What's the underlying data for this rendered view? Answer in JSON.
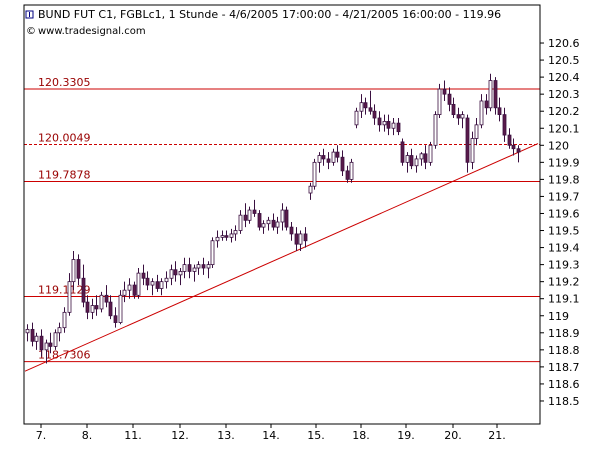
{
  "header": {
    "title": "BUND FUT C1, FGBLc1, 1 Stunde - 4/6/2005 17:00:00 - 4/21/2005 16:00:00 - 119.96",
    "source": "www.tradesignal.com"
  },
  "colors": {
    "up_candle": "#ffffff",
    "down_candle": "#5a1a4a",
    "candle_outline": "#3a1040",
    "level_line": "#cc0000",
    "level_label": "#990000",
    "grid": "#000000"
  },
  "chart_data": {
    "type": "candlestick",
    "title": "BUND FUT C1, FGBLc1, 1 Stunde - 4/6/2005 17:00:00 - 4/21/2005 16:00:00 - 119.96",
    "x_tick_labels": [
      "7.",
      "8.",
      "11.",
      "12.",
      "13.",
      "14.",
      "15.",
      "18.",
      "19.",
      "20.",
      "21."
    ],
    "y_ticks": [
      118.5,
      118.6,
      118.7,
      118.8,
      118.9,
      119,
      119.1,
      119.2,
      119.3,
      119.4,
      119.5,
      119.6,
      119.7,
      119.8,
      119.9,
      120,
      120.1,
      120.2,
      120.3,
      120.4,
      120.5,
      120.6
    ],
    "ylim": [
      118.45,
      120.65
    ],
    "levels": [
      {
        "value": 120.3305,
        "label": "120.3305",
        "style": "solid"
      },
      {
        "value": 120.0049,
        "label": "120.0049",
        "style": "dashed"
      },
      {
        "value": 119.7878,
        "label": "119.7878",
        "style": "solid"
      },
      {
        "value": 119.1129,
        "label": "119.1129",
        "style": "solid"
      },
      {
        "value": 118.7306,
        "label": "118.7306",
        "style": "solid"
      }
    ],
    "trendline": {
      "start": {
        "bar": 0,
        "value": 118.68
      },
      "end": {
        "bar": 107,
        "value": 119.97
      }
    },
    "last_price": 119.96,
    "candles": [
      {
        "o": 118.9,
        "h": 118.95,
        "l": 118.85,
        "c": 118.92
      },
      {
        "o": 118.92,
        "h": 118.96,
        "l": 118.82,
        "c": 118.85
      },
      {
        "o": 118.85,
        "h": 118.9,
        "l": 118.8,
        "c": 118.88
      },
      {
        "o": 118.88,
        "h": 118.92,
        "l": 118.76,
        "c": 118.8
      },
      {
        "o": 118.8,
        "h": 118.86,
        "l": 118.72,
        "c": 118.84
      },
      {
        "o": 118.84,
        "h": 118.9,
        "l": 118.78,
        "c": 118.82
      },
      {
        "o": 118.82,
        "h": 118.92,
        "l": 118.8,
        "c": 118.9
      },
      {
        "o": 118.9,
        "h": 118.96,
        "l": 118.85,
        "c": 118.93
      },
      {
        "o": 118.93,
        "h": 119.05,
        "l": 118.9,
        "c": 119.02
      },
      {
        "o": 119.02,
        "h": 119.25,
        "l": 119.0,
        "c": 119.2
      },
      {
        "o": 119.2,
        "h": 119.38,
        "l": 119.15,
        "c": 119.33
      },
      {
        "o": 119.33,
        "h": 119.36,
        "l": 119.18,
        "c": 119.22
      },
      {
        "o": 119.22,
        "h": 119.3,
        "l": 119.05,
        "c": 119.08
      },
      {
        "o": 119.08,
        "h": 119.12,
        "l": 118.98,
        "c": 119.02
      },
      {
        "o": 119.02,
        "h": 119.1,
        "l": 118.98,
        "c": 119.06
      },
      {
        "o": 119.06,
        "h": 119.12,
        "l": 119.0,
        "c": 119.04
      },
      {
        "o": 119.04,
        "h": 119.14,
        "l": 119.02,
        "c": 119.12
      },
      {
        "o": 119.12,
        "h": 119.18,
        "l": 119.05,
        "c": 119.08
      },
      {
        "o": 119.08,
        "h": 119.12,
        "l": 118.98,
        "c": 119.0
      },
      {
        "o": 119.0,
        "h": 119.05,
        "l": 118.93,
        "c": 118.96
      },
      {
        "o": 118.96,
        "h": 119.15,
        "l": 118.95,
        "c": 119.12
      },
      {
        "o": 119.12,
        "h": 119.2,
        "l": 119.08,
        "c": 119.15
      },
      {
        "o": 119.15,
        "h": 119.22,
        "l": 119.1,
        "c": 119.18
      },
      {
        "o": 119.18,
        "h": 119.2,
        "l": 119.1,
        "c": 119.12
      },
      {
        "o": 119.12,
        "h": 119.28,
        "l": 119.1,
        "c": 119.25
      },
      {
        "o": 119.25,
        "h": 119.3,
        "l": 119.18,
        "c": 119.22
      },
      {
        "o": 119.22,
        "h": 119.26,
        "l": 119.15,
        "c": 119.18
      },
      {
        "o": 119.18,
        "h": 119.22,
        "l": 119.12,
        "c": 119.2
      },
      {
        "o": 119.2,
        "h": 119.24,
        "l": 119.14,
        "c": 119.16
      },
      {
        "o": 119.16,
        "h": 119.22,
        "l": 119.12,
        "c": 119.2
      },
      {
        "o": 119.2,
        "h": 119.26,
        "l": 119.16,
        "c": 119.22
      },
      {
        "o": 119.22,
        "h": 119.3,
        "l": 119.18,
        "c": 119.27
      },
      {
        "o": 119.27,
        "h": 119.32,
        "l": 119.2,
        "c": 119.24
      },
      {
        "o": 119.24,
        "h": 119.28,
        "l": 119.18,
        "c": 119.26
      },
      {
        "o": 119.26,
        "h": 119.34,
        "l": 119.22,
        "c": 119.3
      },
      {
        "o": 119.3,
        "h": 119.34,
        "l": 119.22,
        "c": 119.26
      },
      {
        "o": 119.26,
        "h": 119.3,
        "l": 119.2,
        "c": 119.28
      },
      {
        "o": 119.28,
        "h": 119.32,
        "l": 119.24,
        "c": 119.3
      },
      {
        "o": 119.3,
        "h": 119.34,
        "l": 119.24,
        "c": 119.28
      },
      {
        "o": 119.28,
        "h": 119.32,
        "l": 119.22,
        "c": 119.3
      },
      {
        "o": 119.3,
        "h": 119.46,
        "l": 119.28,
        "c": 119.44
      },
      {
        "o": 119.44,
        "h": 119.5,
        "l": 119.4,
        "c": 119.46
      },
      {
        "o": 119.46,
        "h": 119.5,
        "l": 119.44,
        "c": 119.47
      },
      {
        "o": 119.47,
        "h": 119.5,
        "l": 119.44,
        "c": 119.46
      },
      {
        "o": 119.46,
        "h": 119.51,
        "l": 119.43,
        "c": 119.48
      },
      {
        "o": 119.48,
        "h": 119.53,
        "l": 119.44,
        "c": 119.5
      },
      {
        "o": 119.5,
        "h": 119.62,
        "l": 119.48,
        "c": 119.59
      },
      {
        "o": 119.59,
        "h": 119.66,
        "l": 119.52,
        "c": 119.56
      },
      {
        "o": 119.56,
        "h": 119.64,
        "l": 119.54,
        "c": 119.62
      },
      {
        "o": 119.62,
        "h": 119.68,
        "l": 119.58,
        "c": 119.6
      },
      {
        "o": 119.6,
        "h": 119.62,
        "l": 119.5,
        "c": 119.52
      },
      {
        "o": 119.52,
        "h": 119.56,
        "l": 119.48,
        "c": 119.54
      },
      {
        "o": 119.54,
        "h": 119.58,
        "l": 119.5,
        "c": 119.56
      },
      {
        "o": 119.56,
        "h": 119.6,
        "l": 119.5,
        "c": 119.52
      },
      {
        "o": 119.52,
        "h": 119.58,
        "l": 119.48,
        "c": 119.55
      },
      {
        "o": 119.55,
        "h": 119.66,
        "l": 119.5,
        "c": 119.62
      },
      {
        "o": 119.62,
        "h": 119.64,
        "l": 119.5,
        "c": 119.52
      },
      {
        "o": 119.52,
        "h": 119.55,
        "l": 119.44,
        "c": 119.48
      },
      {
        "o": 119.48,
        "h": 119.52,
        "l": 119.38,
        "c": 119.42
      },
      {
        "o": 119.42,
        "h": 119.5,
        "l": 119.38,
        "c": 119.48
      },
      {
        "o": 119.48,
        "h": 119.52,
        "l": 119.4,
        "c": 119.44
      },
      {
        "o": 119.72,
        "h": 119.78,
        "l": 119.68,
        "c": 119.76
      },
      {
        "o": 119.76,
        "h": 119.92,
        "l": 119.74,
        "c": 119.9
      },
      {
        "o": 119.9,
        "h": 119.96,
        "l": 119.84,
        "c": 119.94
      },
      {
        "o": 119.94,
        "h": 119.98,
        "l": 119.88,
        "c": 119.92
      },
      {
        "o": 119.92,
        "h": 119.96,
        "l": 119.86,
        "c": 119.9
      },
      {
        "o": 119.9,
        "h": 119.98,
        "l": 119.88,
        "c": 119.96
      },
      {
        "o": 119.96,
        "h": 120.0,
        "l": 119.9,
        "c": 119.93
      },
      {
        "o": 119.93,
        "h": 119.97,
        "l": 119.82,
        "c": 119.85
      },
      {
        "o": 119.85,
        "h": 119.88,
        "l": 119.78,
        "c": 119.8
      },
      {
        "o": 119.8,
        "h": 119.92,
        "l": 119.78,
        "c": 119.9
      },
      {
        "o": 120.12,
        "h": 120.22,
        "l": 120.1,
        "c": 120.2
      },
      {
        "o": 120.2,
        "h": 120.3,
        "l": 120.16,
        "c": 120.25
      },
      {
        "o": 120.25,
        "h": 120.28,
        "l": 120.18,
        "c": 120.22
      },
      {
        "o": 120.22,
        "h": 120.32,
        "l": 120.18,
        "c": 120.2
      },
      {
        "o": 120.2,
        "h": 120.24,
        "l": 120.12,
        "c": 120.16
      },
      {
        "o": 120.16,
        "h": 120.2,
        "l": 120.08,
        "c": 120.12
      },
      {
        "o": 120.12,
        "h": 120.18,
        "l": 120.08,
        "c": 120.14
      },
      {
        "o": 120.14,
        "h": 120.18,
        "l": 120.06,
        "c": 120.1
      },
      {
        "o": 120.1,
        "h": 120.16,
        "l": 120.06,
        "c": 120.13
      },
      {
        "o": 120.13,
        "h": 120.16,
        "l": 120.06,
        "c": 120.08
      },
      {
        "o": 120.02,
        "h": 120.04,
        "l": 119.88,
        "c": 119.9
      },
      {
        "o": 119.9,
        "h": 119.96,
        "l": 119.84,
        "c": 119.94
      },
      {
        "o": 119.94,
        "h": 119.98,
        "l": 119.86,
        "c": 119.88
      },
      {
        "o": 119.88,
        "h": 119.94,
        "l": 119.84,
        "c": 119.92
      },
      {
        "o": 119.92,
        "h": 119.96,
        "l": 119.88,
        "c": 119.95
      },
      {
        "o": 119.95,
        "h": 120.0,
        "l": 119.86,
        "c": 119.9
      },
      {
        "o": 119.9,
        "h": 120.02,
        "l": 119.88,
        "c": 120.0
      },
      {
        "o": 120.0,
        "h": 120.2,
        "l": 119.98,
        "c": 120.18
      },
      {
        "o": 120.18,
        "h": 120.36,
        "l": 120.16,
        "c": 120.33
      },
      {
        "o": 120.33,
        "h": 120.38,
        "l": 120.26,
        "c": 120.3
      },
      {
        "o": 120.3,
        "h": 120.34,
        "l": 120.2,
        "c": 120.24
      },
      {
        "o": 120.24,
        "h": 120.28,
        "l": 120.16,
        "c": 120.18
      },
      {
        "o": 120.18,
        "h": 120.22,
        "l": 120.12,
        "c": 120.16
      },
      {
        "o": 120.16,
        "h": 120.2,
        "l": 120.1,
        "c": 120.18
      },
      {
        "o": 120.16,
        "h": 120.18,
        "l": 119.84,
        "c": 119.9
      },
      {
        "o": 119.9,
        "h": 120.08,
        "l": 119.86,
        "c": 120.04
      },
      {
        "o": 120.04,
        "h": 120.16,
        "l": 120.0,
        "c": 120.12
      },
      {
        "o": 120.12,
        "h": 120.3,
        "l": 120.1,
        "c": 120.26
      },
      {
        "o": 120.26,
        "h": 120.3,
        "l": 120.18,
        "c": 120.22
      },
      {
        "o": 120.22,
        "h": 120.42,
        "l": 120.2,
        "c": 120.38
      },
      {
        "o": 120.38,
        "h": 120.4,
        "l": 120.18,
        "c": 120.22
      },
      {
        "o": 120.22,
        "h": 120.28,
        "l": 120.14,
        "c": 120.18
      },
      {
        "o": 120.18,
        "h": 120.22,
        "l": 120.02,
        "c": 120.06
      },
      {
        "o": 120.06,
        "h": 120.1,
        "l": 119.98,
        "c": 120.0
      },
      {
        "o": 120.0,
        "h": 120.04,
        "l": 119.94,
        "c": 119.98
      },
      {
        "o": 119.98,
        "h": 120.0,
        "l": 119.9,
        "c": 119.96
      }
    ]
  }
}
